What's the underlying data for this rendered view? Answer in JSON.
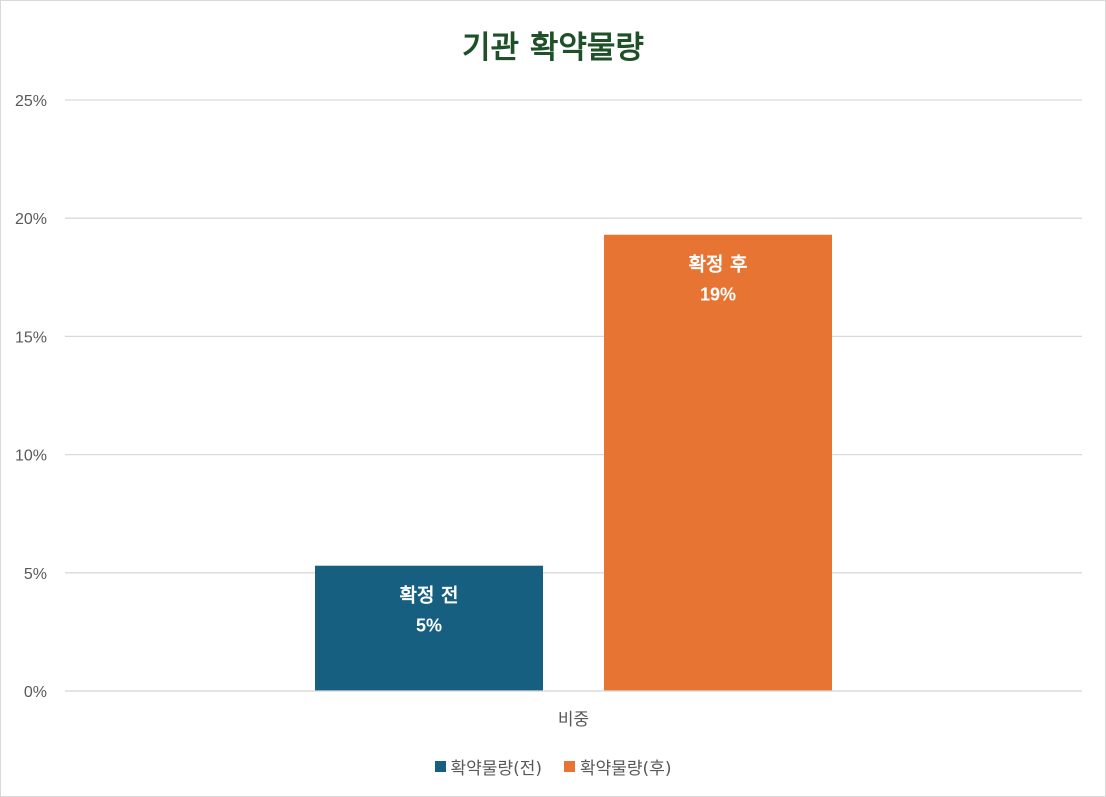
{
  "chart_data": {
    "type": "bar",
    "title": "기관 확약물량",
    "categories": [
      "비중"
    ],
    "ylim": [
      0,
      25
    ],
    "yticks": [
      0,
      5,
      10,
      15,
      20,
      25
    ],
    "ytick_labels": [
      "0%",
      "5%",
      "10%",
      "15%",
      "20%",
      "25%"
    ],
    "grid": true,
    "legend_position": "bottom",
    "series": [
      {
        "name": "확약물량(전)",
        "values": [
          5.3
        ],
        "color": "#175f80",
        "label_name": "확정 전",
        "label_value": "5%"
      },
      {
        "name": "확약물량(후)",
        "values": [
          19.3
        ],
        "color": "#e87434",
        "label_name": "확정 후",
        "label_value": "19%"
      }
    ]
  }
}
